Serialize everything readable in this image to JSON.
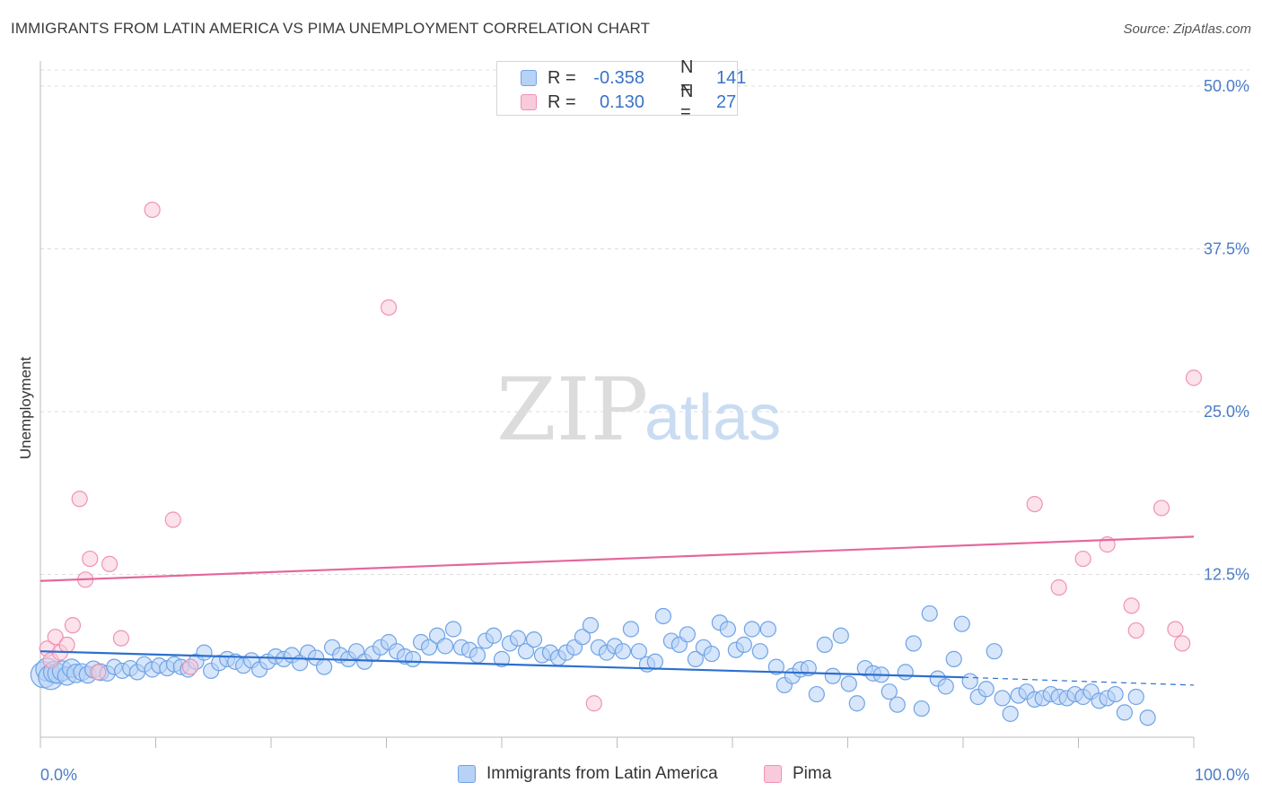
{
  "chart_data": {
    "type": "scatter",
    "title": "IMMIGRANTS FROM LATIN AMERICA VS PIMA UNEMPLOYMENT CORRELATION CHART",
    "source": "Source: ZipAtlas.com",
    "xlabel": "",
    "ylabel": "Unemployment",
    "xlim": [
      0,
      100
    ],
    "ylim": [
      0,
      50
    ],
    "x_tick_labels": [
      "0.0%",
      "100.0%"
    ],
    "y_ticks": [
      12.5,
      25.0,
      37.5,
      50.0
    ],
    "y_tick_labels": [
      "12.5%",
      "25.0%",
      "37.5%",
      "50.0%"
    ],
    "grid": true,
    "watermark": {
      "zip": "ZIP",
      "atlas": "atlas"
    },
    "legend_stats": [
      {
        "r_label": "R = ",
        "r_value": "-0.358",
        "n_label": "N = ",
        "n_value": "141"
      },
      {
        "r_label": "R = ",
        "r_value": "0.130",
        "n_label": "N = ",
        "n_value": "27"
      }
    ],
    "series": [
      {
        "name": "Immigrants from Latin America",
        "color": "#6fa3e6",
        "fill": "#b7d2f5",
        "trend": {
          "x": [
            0,
            80
          ],
          "y": [
            6.6,
            4.6
          ],
          "dashed_to": [
            100,
            4.0
          ],
          "color": "#2d6fcf"
        },
        "points": [
          [
            0.3,
            4.8,
            1.7
          ],
          [
            0.6,
            5.2,
            1.5
          ],
          [
            0.9,
            4.6,
            1.6
          ],
          [
            1.2,
            5.0,
            1.4
          ],
          [
            1.5,
            4.9,
            1.3
          ],
          [
            1.9,
            5.1,
            1.3
          ],
          [
            2.3,
            4.7,
            1.2
          ],
          [
            2.7,
            5.3,
            1.2
          ],
          [
            3.1,
            4.9,
            1.2
          ],
          [
            3.6,
            5.0,
            1.1
          ],
          [
            4.1,
            4.8,
            1.1
          ],
          [
            4.6,
            5.2,
            1.1
          ],
          [
            5.2,
            5.0,
            1.1
          ],
          [
            5.8,
            4.9,
            1.0
          ],
          [
            6.4,
            5.4,
            1.0
          ],
          [
            7.1,
            5.1,
            1.0
          ],
          [
            7.8,
            5.3,
            1.0
          ],
          [
            8.4,
            5.0,
            1.0
          ],
          [
            9.0,
            5.6,
            1.0
          ],
          [
            9.7,
            5.2,
            1.0
          ],
          [
            10.3,
            5.5,
            1.0
          ],
          [
            11.0,
            5.3,
            1.0
          ],
          [
            11.6,
            5.6,
            1.0
          ],
          [
            12.2,
            5.4,
            1.0
          ],
          [
            12.8,
            5.2,
            1.0
          ],
          [
            13.5,
            5.8,
            1.0
          ],
          [
            14.2,
            6.5,
            1.0
          ],
          [
            14.8,
            5.1,
            1.0
          ],
          [
            15.5,
            5.7,
            1.0
          ],
          [
            16.2,
            6.0,
            1.0
          ],
          [
            16.9,
            5.8,
            1.0
          ],
          [
            17.6,
            5.5,
            1.0
          ],
          [
            18.3,
            5.9,
            1.0
          ],
          [
            19.0,
            5.2,
            1.0
          ],
          [
            19.7,
            5.8,
            1.0
          ],
          [
            20.4,
            6.2,
            1.0
          ],
          [
            21.1,
            6.0,
            1.0
          ],
          [
            21.8,
            6.3,
            1.0
          ],
          [
            22.5,
            5.7,
            1.0
          ],
          [
            23.2,
            6.5,
            1.0
          ],
          [
            23.9,
            6.1,
            1.0
          ],
          [
            24.6,
            5.4,
            1.0
          ],
          [
            25.3,
            6.9,
            1.0
          ],
          [
            26.0,
            6.3,
            1.0
          ],
          [
            26.7,
            6.0,
            1.0
          ],
          [
            27.4,
            6.6,
            1.0
          ],
          [
            28.1,
            5.8,
            1.0
          ],
          [
            28.8,
            6.4,
            1.0
          ],
          [
            29.5,
            6.9,
            1.0
          ],
          [
            30.2,
            7.3,
            1.0
          ],
          [
            30.9,
            6.6,
            1.0
          ],
          [
            31.6,
            6.2,
            1.0
          ],
          [
            32.3,
            6.0,
            1.0
          ],
          [
            33.0,
            7.3,
            1.0
          ],
          [
            33.7,
            6.9,
            1.0
          ],
          [
            34.4,
            7.8,
            1.0
          ],
          [
            35.1,
            7.0,
            1.0
          ],
          [
            35.8,
            8.3,
            1.0
          ],
          [
            36.5,
            6.9,
            1.0
          ],
          [
            37.2,
            6.7,
            1.0
          ],
          [
            37.9,
            6.3,
            1.0
          ],
          [
            38.6,
            7.4,
            1.0
          ],
          [
            39.3,
            7.8,
            1.0
          ],
          [
            40.0,
            6.0,
            1.0
          ],
          [
            40.7,
            7.2,
            1.0
          ],
          [
            41.4,
            7.6,
            1.0
          ],
          [
            42.1,
            6.6,
            1.0
          ],
          [
            42.8,
            7.5,
            1.0
          ],
          [
            43.5,
            6.3,
            1.0
          ],
          [
            44.2,
            6.5,
            1.0
          ],
          [
            44.9,
            6.1,
            1.0
          ],
          [
            45.6,
            6.5,
            1.0
          ],
          [
            46.3,
            6.9,
            1.0
          ],
          [
            47.0,
            7.7,
            1.0
          ],
          [
            47.7,
            8.6,
            1.0
          ],
          [
            48.4,
            6.9,
            1.0
          ],
          [
            49.1,
            6.5,
            1.0
          ],
          [
            49.8,
            7.0,
            1.0
          ],
          [
            50.5,
            6.6,
            1.0
          ],
          [
            51.2,
            8.3,
            1.0
          ],
          [
            51.9,
            6.6,
            1.0
          ],
          [
            52.6,
            5.6,
            1.0
          ],
          [
            53.3,
            5.8,
            1.0
          ],
          [
            54.0,
            9.3,
            1.0
          ],
          [
            54.7,
            7.4,
            1.0
          ],
          [
            55.4,
            7.1,
            1.0
          ],
          [
            56.1,
            7.9,
            1.0
          ],
          [
            56.8,
            6.0,
            1.0
          ],
          [
            57.5,
            6.9,
            1.0
          ],
          [
            58.2,
            6.4,
            1.0
          ],
          [
            58.9,
            8.8,
            1.0
          ],
          [
            59.6,
            8.3,
            1.0
          ],
          [
            60.3,
            6.7,
            1.0
          ],
          [
            61.0,
            7.1,
            1.0
          ],
          [
            61.7,
            8.3,
            1.0
          ],
          [
            62.4,
            6.6,
            1.0
          ],
          [
            63.1,
            8.3,
            1.0
          ],
          [
            63.8,
            5.4,
            1.0
          ],
          [
            64.5,
            4.0,
            1.0
          ],
          [
            65.2,
            4.7,
            1.0
          ],
          [
            65.9,
            5.2,
            1.0
          ],
          [
            66.6,
            5.3,
            1.0
          ],
          [
            67.3,
            3.3,
            1.0
          ],
          [
            68.0,
            7.1,
            1.0
          ],
          [
            68.7,
            4.7,
            1.0
          ],
          [
            69.4,
            7.8,
            1.0
          ],
          [
            70.1,
            4.1,
            1.0
          ],
          [
            70.8,
            2.6,
            1.0
          ],
          [
            71.5,
            5.3,
            1.0
          ],
          [
            72.2,
            4.9,
            1.0
          ],
          [
            72.9,
            4.8,
            1.0
          ],
          [
            73.6,
            3.5,
            1.0
          ],
          [
            74.3,
            2.5,
            1.0
          ],
          [
            75.0,
            5.0,
            1.0
          ],
          [
            75.7,
            7.2,
            1.0
          ],
          [
            76.4,
            2.2,
            1.0
          ],
          [
            77.1,
            9.5,
            1.0
          ],
          [
            77.8,
            4.5,
            1.0
          ],
          [
            78.5,
            3.9,
            1.0
          ],
          [
            79.2,
            6.0,
            1.0
          ],
          [
            79.9,
            8.7,
            1.0
          ],
          [
            80.6,
            4.3,
            1.0
          ],
          [
            81.3,
            3.1,
            1.0
          ],
          [
            82.0,
            3.7,
            1.0
          ],
          [
            82.7,
            6.6,
            1.0
          ],
          [
            83.4,
            3.0,
            1.0
          ],
          [
            84.1,
            1.8,
            1.0
          ],
          [
            84.8,
            3.2,
            1.0
          ],
          [
            85.5,
            3.5,
            1.0
          ],
          [
            86.2,
            2.9,
            1.0
          ],
          [
            86.9,
            3.0,
            1.0
          ],
          [
            87.6,
            3.3,
            1.0
          ],
          [
            88.3,
            3.1,
            1.0
          ],
          [
            89.0,
            3.0,
            1.0
          ],
          [
            89.7,
            3.3,
            1.0
          ],
          [
            90.4,
            3.1,
            1.0
          ],
          [
            91.1,
            3.5,
            1.0
          ],
          [
            91.8,
            2.8,
            1.0
          ],
          [
            92.5,
            3.0,
            1.0
          ],
          [
            93.2,
            3.3,
            1.0
          ],
          [
            94.0,
            1.9,
            1.0
          ],
          [
            95.0,
            3.1,
            1.0
          ],
          [
            96.0,
            1.5,
            1.0
          ]
        ]
      },
      {
        "name": "Pima",
        "color": "#ef93b2",
        "fill": "#f9cadb",
        "trend": {
          "x": [
            0,
            100
          ],
          "y": [
            12.0,
            15.4
          ],
          "color": "#e5679b"
        },
        "points": [
          [
            0.6,
            6.8,
            1.0
          ],
          [
            0.9,
            5.9,
            1.0
          ],
          [
            1.3,
            7.7,
            1.0
          ],
          [
            1.7,
            6.5,
            1.0
          ],
          [
            2.3,
            7.1,
            1.0
          ],
          [
            2.8,
            8.6,
            1.0
          ],
          [
            3.4,
            18.3,
            1.0
          ],
          [
            3.9,
            12.1,
            1.0
          ],
          [
            4.3,
            13.7,
            1.0
          ],
          [
            5.0,
            5.0,
            1.0
          ],
          [
            6.0,
            13.3,
            1.0
          ],
          [
            7.0,
            7.6,
            1.0
          ],
          [
            9.7,
            40.5,
            1.0
          ],
          [
            11.5,
            16.7,
            1.0
          ],
          [
            13.0,
            5.4,
            1.0
          ],
          [
            30.2,
            33.0,
            1.0
          ],
          [
            48.0,
            2.6,
            1.0
          ],
          [
            86.2,
            17.9,
            1.0
          ],
          [
            88.3,
            11.5,
            1.0
          ],
          [
            90.4,
            13.7,
            1.0
          ],
          [
            92.5,
            14.8,
            1.0
          ],
          [
            94.6,
            10.1,
            1.0
          ],
          [
            95.0,
            8.2,
            1.0
          ],
          [
            97.2,
            17.6,
            1.0
          ],
          [
            98.4,
            8.3,
            1.0
          ],
          [
            100.0,
            27.6,
            1.0
          ],
          [
            99.0,
            7.2,
            1.0
          ]
        ]
      }
    ]
  }
}
